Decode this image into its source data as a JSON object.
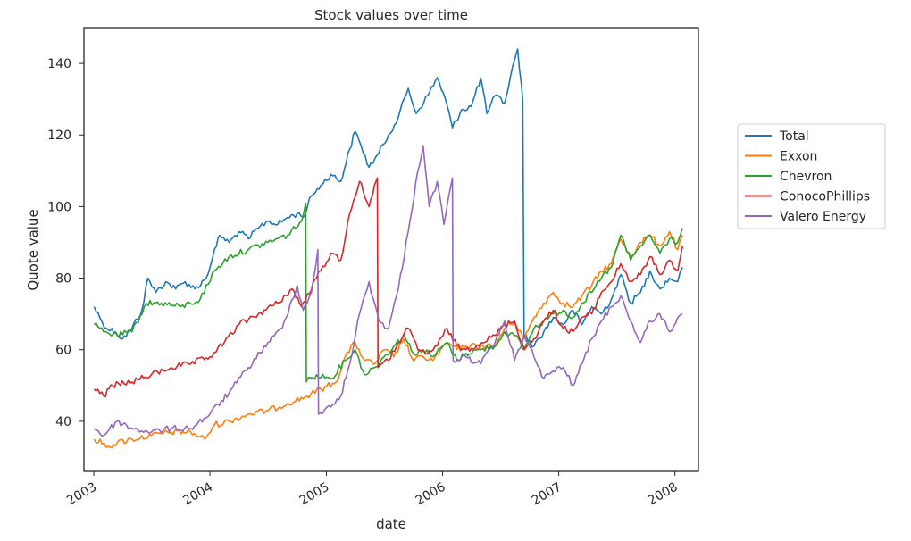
{
  "chart_data": {
    "type": "line",
    "title": "Stock values over time",
    "xlabel": "date",
    "ylabel": "Quote value",
    "xlim": [
      "2002-12-01",
      "2008-03-15"
    ],
    "ylim": [
      26,
      150
    ],
    "x_ticks": [
      "2003",
      "2004",
      "2005",
      "2006",
      "2007",
      "2008"
    ],
    "y_ticks": [
      40,
      60,
      80,
      100,
      120,
      140
    ],
    "grid": false,
    "legend_position": "right",
    "series": [
      {
        "name": "Total",
        "color": "#1f77b4",
        "points": [
          [
            "2003-01-02",
            72
          ],
          [
            "2003-01-20",
            69
          ],
          [
            "2003-02-10",
            66
          ],
          [
            "2003-03-10",
            65
          ],
          [
            "2003-04-01",
            63
          ],
          [
            "2003-05-01",
            66
          ],
          [
            "2003-06-01",
            71
          ],
          [
            "2003-06-20",
            80
          ],
          [
            "2003-07-15",
            76
          ],
          [
            "2003-08-15",
            79
          ],
          [
            "2003-09-15",
            77
          ],
          [
            "2003-10-15",
            79
          ],
          [
            "2003-11-15",
            77
          ],
          [
            "2003-12-20",
            80
          ],
          [
            "2004-01-10",
            86
          ],
          [
            "2004-02-01",
            92
          ],
          [
            "2004-03-01",
            90
          ],
          [
            "2004-04-01",
            93
          ],
          [
            "2004-05-01",
            91
          ],
          [
            "2004-06-01",
            94
          ],
          [
            "2004-07-01",
            96
          ],
          [
            "2004-08-01",
            95
          ],
          [
            "2004-09-01",
            97
          ],
          [
            "2004-10-01",
            98
          ],
          [
            "2004-10-20",
            97
          ],
          [
            "2004-11-15",
            103
          ],
          [
            "2004-12-15",
            106
          ],
          [
            "2005-01-15",
            109
          ],
          [
            "2005-02-15",
            107
          ],
          [
            "2005-03-15",
            116
          ],
          [
            "2005-04-01",
            121
          ],
          [
            "2005-04-20",
            117
          ],
          [
            "2005-05-15",
            111
          ],
          [
            "2005-06-15",
            115
          ],
          [
            "2005-07-15",
            120
          ],
          [
            "2005-08-15",
            125
          ],
          [
            "2005-09-15",
            133
          ],
          [
            "2005-10-10",
            126
          ],
          [
            "2005-11-15",
            131
          ],
          [
            "2005-12-15",
            136
          ],
          [
            "2006-01-10",
            130
          ],
          [
            "2006-02-01",
            122
          ],
          [
            "2006-03-01",
            127
          ],
          [
            "2006-04-01",
            128
          ],
          [
            "2006-05-01",
            136
          ],
          [
            "2006-05-20",
            126
          ],
          [
            "2006-06-15",
            131
          ],
          [
            "2006-07-15",
            129
          ],
          [
            "2006-08-15",
            141
          ],
          [
            "2006-08-25",
            144
          ],
          [
            "2006-09-10",
            130
          ],
          [
            "2006-09-14",
            64
          ],
          [
            "2006-10-15",
            61
          ],
          [
            "2006-11-15",
            65
          ],
          [
            "2006-12-15",
            69
          ],
          [
            "2007-01-15",
            67
          ],
          [
            "2007-02-15",
            71
          ],
          [
            "2007-03-15",
            67
          ],
          [
            "2007-04-15",
            72
          ],
          [
            "2007-05-15",
            70
          ],
          [
            "2007-06-15",
            74
          ],
          [
            "2007-07-15",
            81
          ],
          [
            "2007-08-15",
            73
          ],
          [
            "2007-09-15",
            76
          ],
          [
            "2007-10-15",
            82
          ],
          [
            "2007-11-15",
            77
          ],
          [
            "2007-12-15",
            80
          ],
          [
            "2008-01-10",
            79
          ],
          [
            "2008-01-25",
            83
          ]
        ]
      },
      {
        "name": "Exxon",
        "color": "#ff7f0e",
        "points": [
          [
            "2003-01-02",
            35
          ],
          [
            "2003-02-15",
            33
          ],
          [
            "2003-03-15",
            34
          ],
          [
            "2003-05-01",
            35
          ],
          [
            "2003-07-01",
            36
          ],
          [
            "2003-09-01",
            37
          ],
          [
            "2003-11-01",
            37
          ],
          [
            "2003-12-15",
            35
          ],
          [
            "2004-01-15",
            39
          ],
          [
            "2004-03-01",
            40
          ],
          [
            "2004-05-01",
            42
          ],
          [
            "2004-07-01",
            43
          ],
          [
            "2004-09-01",
            45
          ],
          [
            "2004-11-01",
            47
          ],
          [
            "2004-12-15",
            49
          ],
          [
            "2005-02-01",
            51
          ],
          [
            "2005-03-01",
            58
          ],
          [
            "2005-04-01",
            62
          ],
          [
            "2005-05-01",
            57
          ],
          [
            "2005-06-01",
            56
          ],
          [
            "2005-07-01",
            60
          ],
          [
            "2005-08-01",
            58
          ],
          [
            "2005-09-01",
            63
          ],
          [
            "2005-10-01",
            57
          ],
          [
            "2005-11-01",
            58
          ],
          [
            "2005-12-01",
            57
          ],
          [
            "2006-01-15",
            62
          ],
          [
            "2006-02-15",
            60
          ],
          [
            "2006-03-15",
            61
          ],
          [
            "2006-05-01",
            61
          ],
          [
            "2006-06-15",
            61
          ],
          [
            "2006-07-15",
            66
          ],
          [
            "2006-08-15",
            68
          ],
          [
            "2006-09-15",
            63
          ],
          [
            "2006-10-15",
            69
          ],
          [
            "2006-11-15",
            73
          ],
          [
            "2006-12-15",
            76
          ],
          [
            "2007-01-15",
            73
          ],
          [
            "2007-02-15",
            72
          ],
          [
            "2007-03-15",
            75
          ],
          [
            "2007-04-15",
            78
          ],
          [
            "2007-05-15",
            82
          ],
          [
            "2007-06-15",
            84
          ],
          [
            "2007-07-15",
            91
          ],
          [
            "2007-08-15",
            86
          ],
          [
            "2007-09-15",
            90
          ],
          [
            "2007-10-15",
            92
          ],
          [
            "2007-11-15",
            89
          ],
          [
            "2007-12-15",
            93
          ],
          [
            "2008-01-10",
            88
          ],
          [
            "2008-01-25",
            92
          ]
        ]
      },
      {
        "name": "Chevron",
        "color": "#2ca02c",
        "points": [
          [
            "2003-01-02",
            67
          ],
          [
            "2003-02-01",
            65
          ],
          [
            "2003-03-15",
            64
          ],
          [
            "2003-05-01",
            65
          ],
          [
            "2003-06-15",
            73
          ],
          [
            "2003-08-01",
            73
          ],
          [
            "2003-10-01",
            72
          ],
          [
            "2003-12-01",
            74
          ],
          [
            "2004-01-15",
            82
          ],
          [
            "2004-03-01",
            86
          ],
          [
            "2004-05-01",
            88
          ],
          [
            "2004-07-01",
            90
          ],
          [
            "2004-09-01",
            92
          ],
          [
            "2004-10-15",
            96
          ],
          [
            "2004-10-28",
            101
          ],
          [
            "2004-10-30",
            51
          ],
          [
            "2004-12-01",
            53
          ],
          [
            "2005-01-15",
            52
          ],
          [
            "2005-03-01",
            57
          ],
          [
            "2005-04-01",
            60
          ],
          [
            "2005-05-01",
            53
          ],
          [
            "2005-06-01",
            55
          ],
          [
            "2005-07-01",
            58
          ],
          [
            "2005-08-01",
            61
          ],
          [
            "2005-09-01",
            64
          ],
          [
            "2005-10-01",
            59
          ],
          [
            "2005-11-01",
            60
          ],
          [
            "2005-12-01",
            58
          ],
          [
            "2006-01-15",
            62
          ],
          [
            "2006-02-15",
            57
          ],
          [
            "2006-03-15",
            59
          ],
          [
            "2006-05-01",
            60
          ],
          [
            "2006-06-15",
            61
          ],
          [
            "2006-07-15",
            65
          ],
          [
            "2006-08-15",
            64
          ],
          [
            "2006-09-15",
            60
          ],
          [
            "2006-10-15",
            66
          ],
          [
            "2006-11-15",
            68
          ],
          [
            "2006-12-15",
            70
          ],
          [
            "2007-01-15",
            71
          ],
          [
            "2007-02-15",
            69
          ],
          [
            "2007-03-15",
            73
          ],
          [
            "2007-04-15",
            76
          ],
          [
            "2007-05-15",
            80
          ],
          [
            "2007-06-15",
            83
          ],
          [
            "2007-07-15",
            92
          ],
          [
            "2007-08-15",
            85
          ],
          [
            "2007-09-15",
            89
          ],
          [
            "2007-10-15",
            92
          ],
          [
            "2007-11-15",
            87
          ],
          [
            "2007-12-15",
            91
          ],
          [
            "2008-01-10",
            90
          ],
          [
            "2008-01-25",
            94
          ]
        ]
      },
      {
        "name": "ConocoPhillips",
        "color": "#d62728",
        "points": [
          [
            "2003-01-02",
            49
          ],
          [
            "2003-02-01",
            47
          ],
          [
            "2003-03-01",
            50
          ],
          [
            "2003-05-01",
            51
          ],
          [
            "2003-07-01",
            53
          ],
          [
            "2003-09-01",
            55
          ],
          [
            "2003-11-01",
            56
          ],
          [
            "2004-01-01",
            58
          ],
          [
            "2004-02-15",
            62
          ],
          [
            "2004-04-01",
            67
          ],
          [
            "2004-06-01",
            70
          ],
          [
            "2004-08-01",
            73
          ],
          [
            "2004-09-15",
            77
          ],
          [
            "2004-10-15",
            72
          ],
          [
            "2004-12-01",
            80
          ],
          [
            "2005-01-15",
            87
          ],
          [
            "2005-02-15",
            85
          ],
          [
            "2005-03-15",
            98
          ],
          [
            "2005-04-15",
            107
          ],
          [
            "2005-05-15",
            100
          ],
          [
            "2005-06-01",
            106
          ],
          [
            "2005-06-10",
            108
          ],
          [
            "2005-06-12",
            55
          ],
          [
            "2005-07-15",
            57
          ],
          [
            "2005-08-15",
            62
          ],
          [
            "2005-09-15",
            66
          ],
          [
            "2005-10-15",
            60
          ],
          [
            "2005-11-15",
            59
          ],
          [
            "2005-12-15",
            61
          ],
          [
            "2006-01-15",
            66
          ],
          [
            "2006-02-15",
            61
          ],
          [
            "2006-03-15",
            60
          ],
          [
            "2006-05-01",
            62
          ],
          [
            "2006-06-15",
            64
          ],
          [
            "2006-07-15",
            67
          ],
          [
            "2006-08-15",
            68
          ],
          [
            "2006-09-15",
            60
          ],
          [
            "2006-10-15",
            63
          ],
          [
            "2006-11-15",
            68
          ],
          [
            "2006-12-15",
            71
          ],
          [
            "2007-01-15",
            66
          ],
          [
            "2007-02-15",
            65
          ],
          [
            "2007-03-15",
            69
          ],
          [
            "2007-04-15",
            70
          ],
          [
            "2007-05-15",
            76
          ],
          [
            "2007-06-15",
            79
          ],
          [
            "2007-07-15",
            84
          ],
          [
            "2007-08-15",
            79
          ],
          [
            "2007-09-15",
            81
          ],
          [
            "2007-10-15",
            86
          ],
          [
            "2007-11-15",
            81
          ],
          [
            "2007-12-15",
            85
          ],
          [
            "2008-01-10",
            82
          ],
          [
            "2008-01-25",
            89
          ]
        ]
      },
      {
        "name": "Valero Energy",
        "color": "#9467bd",
        "points": [
          [
            "2003-01-02",
            38
          ],
          [
            "2003-02-01",
            36
          ],
          [
            "2003-03-15",
            40
          ],
          [
            "2003-05-01",
            38
          ],
          [
            "2003-07-01",
            37
          ],
          [
            "2003-09-01",
            38
          ],
          [
            "2003-11-01",
            38
          ],
          [
            "2004-01-01",
            42
          ],
          [
            "2004-03-01",
            48
          ],
          [
            "2004-05-01",
            55
          ],
          [
            "2004-07-01",
            62
          ],
          [
            "2004-08-15",
            66
          ],
          [
            "2004-09-15",
            74
          ],
          [
            "2004-10-01",
            78
          ],
          [
            "2004-10-20",
            71
          ],
          [
            "2004-11-15",
            76
          ],
          [
            "2004-12-05",
            88
          ],
          [
            "2004-12-07",
            42
          ],
          [
            "2005-01-15",
            44
          ],
          [
            "2005-02-15",
            47
          ],
          [
            "2005-03-15",
            56
          ],
          [
            "2005-04-15",
            70
          ],
          [
            "2005-05-15",
            79
          ],
          [
            "2005-06-15",
            68
          ],
          [
            "2005-07-15",
            66
          ],
          [
            "2005-08-15",
            77
          ],
          [
            "2005-09-15",
            93
          ],
          [
            "2005-10-15",
            110
          ],
          [
            "2005-11-01",
            117
          ],
          [
            "2005-11-20",
            100
          ],
          [
            "2005-12-15",
            107
          ],
          [
            "2006-01-05",
            95
          ],
          [
            "2006-02-01",
            108
          ],
          [
            "2006-02-03",
            57
          ],
          [
            "2006-03-15",
            58
          ],
          [
            "2006-05-01",
            56
          ],
          [
            "2006-06-15",
            62
          ],
          [
            "2006-07-15",
            68
          ],
          [
            "2006-08-15",
            57
          ],
          [
            "2006-09-15",
            64
          ],
          [
            "2006-10-15",
            58
          ],
          [
            "2006-11-15",
            52
          ],
          [
            "2006-12-15",
            54
          ],
          [
            "2007-01-15",
            55
          ],
          [
            "2007-02-15",
            50
          ],
          [
            "2007-03-15",
            56
          ],
          [
            "2007-04-15",
            63
          ],
          [
            "2007-05-15",
            68
          ],
          [
            "2007-06-15",
            72
          ],
          [
            "2007-07-15",
            75
          ],
          [
            "2007-08-15",
            68
          ],
          [
            "2007-09-15",
            62
          ],
          [
            "2007-10-15",
            68
          ],
          [
            "2007-11-15",
            70
          ],
          [
            "2007-12-15",
            65
          ],
          [
            "2008-01-10",
            69
          ],
          [
            "2008-01-25",
            70
          ]
        ]
      }
    ]
  }
}
